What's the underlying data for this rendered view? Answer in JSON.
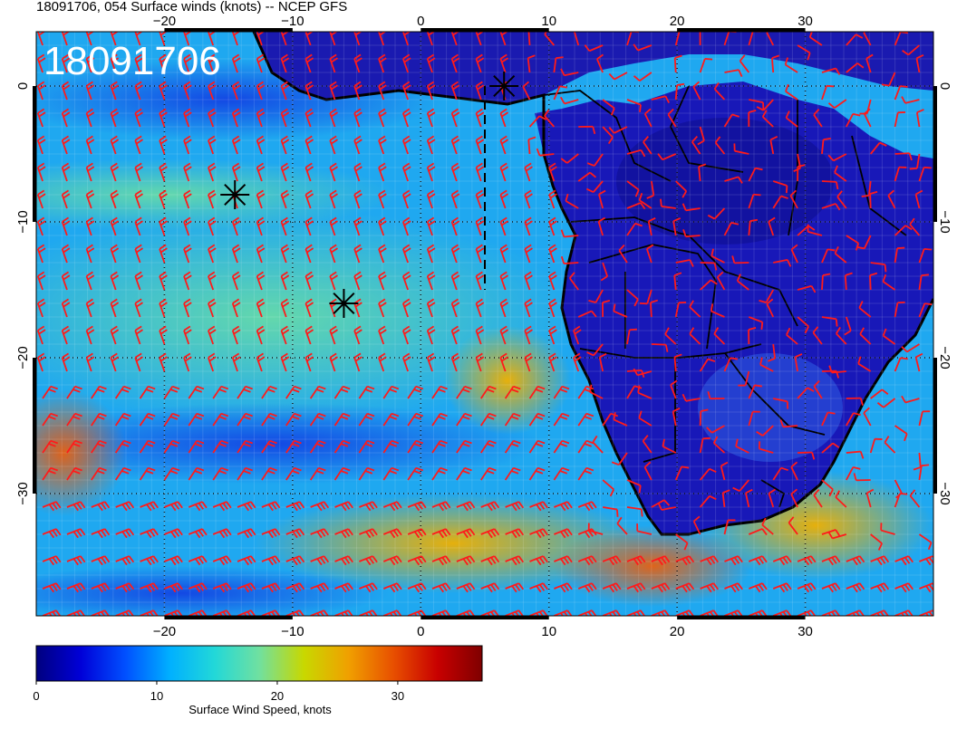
{
  "title": "18091706, 054 Surface winds (knots) -- NCEP GFS",
  "stamp": "18091706",
  "map": {
    "lon_range": [
      -30,
      40
    ],
    "lat_range": [
      -39,
      4
    ],
    "lon_ticks": [
      "−20",
      "−10",
      "0",
      "10",
      "20",
      "30"
    ],
    "lat_ticks": [
      "0",
      "−10",
      "−20",
      "−30"
    ],
    "lon_tick_values": [
      -20,
      -10,
      0,
      10,
      20,
      30
    ],
    "lat_tick_values": [
      0,
      -10,
      -20,
      -30
    ],
    "barb_color": "#ff1a1a",
    "markers": [
      {
        "name": "storm-marker-1",
        "lon": 6.5,
        "lat": 0
      },
      {
        "name": "storm-marker-2",
        "lon": -14.5,
        "lat": -8
      },
      {
        "name": "storm-marker-3",
        "lon": -6,
        "lat": -16
      }
    ],
    "dashed_line": {
      "lon": 5,
      "lat_from": 0,
      "lat_to": -15
    }
  },
  "colorbar": {
    "label": "Surface Wind Speed, knots",
    "ticks": [
      "0",
      "10",
      "20",
      "30"
    ],
    "tick_values": [
      0,
      10,
      20,
      30
    ],
    "range": [
      0,
      37
    ],
    "colors": [
      "#00007f",
      "#0000d8",
      "#0050ff",
      "#00b0ff",
      "#22d8d8",
      "#70e0a0",
      "#c8d800",
      "#f0a000",
      "#e85000",
      "#c80000",
      "#7f0000"
    ]
  }
}
